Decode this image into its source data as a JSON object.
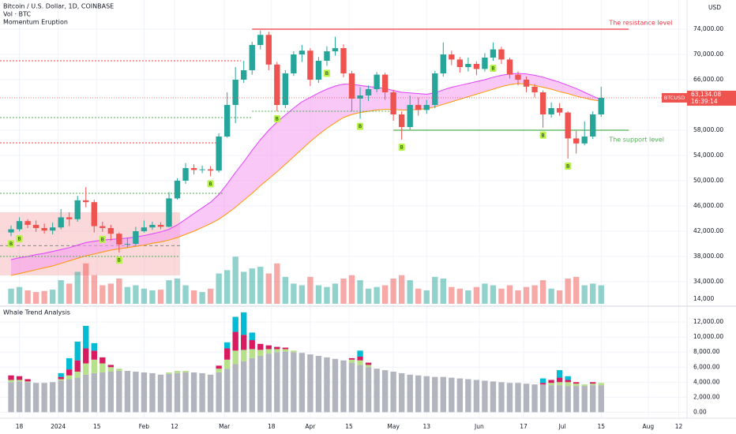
{
  "chart_data": {
    "type": "candlestick",
    "title": "Bitcoin / U.S. Dollar, 1D, COINBASE",
    "volume_label": "Vol · BTC",
    "indicator_label": "Momentum Eruption",
    "currency": "USD",
    "symbol": "BTCUSD",
    "last_price_label": "63,134.08",
    "countdown": "16:39:14",
    "up_color": "#26a69a",
    "down_color": "#ef5350",
    "x": [
      -17,
      -14,
      -11,
      -8,
      -5,
      -2,
      1,
      4,
      7,
      10,
      13,
      16,
      19,
      22,
      25,
      28,
      31,
      34,
      37,
      40,
      43,
      46,
      49,
      52,
      55,
      58,
      61,
      64,
      67,
      70,
      73,
      76,
      79,
      82,
      85,
      88,
      91,
      94,
      97,
      100,
      103,
      106,
      109,
      112,
      115,
      118,
      121,
      124,
      127,
      130,
      133,
      136,
      139,
      142,
      145,
      148,
      151,
      154,
      157,
      160,
      163,
      166,
      169,
      172,
      175,
      178,
      181,
      184,
      187,
      190,
      193,
      196
    ],
    "ohlc": [
      [
        41800,
        42900,
        41200,
        42300
      ],
      [
        42300,
        44200,
        42000,
        43600
      ],
      [
        43600,
        43900,
        42500,
        43000
      ],
      [
        43000,
        43700,
        41900,
        42500
      ],
      [
        42500,
        43200,
        41600,
        42100
      ],
      [
        42100,
        43400,
        41500,
        42600
      ],
      [
        42600,
        45500,
        42300,
        44200
      ],
      [
        44200,
        45000,
        42800,
        43900
      ],
      [
        43900,
        47600,
        43500,
        46900
      ],
      [
        46900,
        49000,
        45800,
        46600
      ],
      [
        46600,
        47000,
        41800,
        42800
      ],
      [
        42800,
        43500,
        41900,
        42500
      ],
      [
        42500,
        43000,
        40500,
        41600
      ],
      [
        41600,
        41800,
        38600,
        39900
      ],
      [
        39900,
        41000,
        39400,
        40000
      ],
      [
        40000,
        42700,
        39700,
        42000
      ],
      [
        42000,
        43700,
        41800,
        42600
      ],
      [
        42600,
        43500,
        42200,
        43000
      ],
      [
        43000,
        43400,
        42300,
        42700
      ],
      [
        42700,
        48200,
        42600,
        47200
      ],
      [
        47200,
        50400,
        47000,
        50000
      ],
      [
        50000,
        52800,
        49500,
        52000
      ],
      [
        52000,
        52600,
        51000,
        51700
      ],
      [
        51700,
        52400,
        51200,
        51800
      ],
      [
        51800,
        52300,
        50700,
        51600
      ],
      [
        51600,
        57500,
        51300,
        57000
      ],
      [
        57000,
        64000,
        56800,
        62000
      ],
      [
        62000,
        68000,
        59100,
        66000
      ],
      [
        66000,
        69000,
        65500,
        67500
      ],
      [
        67500,
        72000,
        66800,
        71500
      ],
      [
        71500,
        73800,
        70800,
        73100
      ],
      [
        73100,
        73600,
        67500,
        68400
      ],
      [
        68400,
        68800,
        61000,
        62000
      ],
      [
        62000,
        67500,
        61500,
        67000
      ],
      [
        67000,
        70500,
        66600,
        70000
      ],
      [
        70000,
        71500,
        68800,
        70600
      ],
      [
        70600,
        71000,
        65000,
        66000
      ],
      [
        66000,
        69600,
        65500,
        69000
      ],
      [
        69000,
        71300,
        68200,
        70500
      ],
      [
        70500,
        72800,
        69800,
        71000
      ],
      [
        71000,
        71600,
        66400,
        67000
      ],
      [
        67000,
        67400,
        61000,
        63000
      ],
      [
        63000,
        64800,
        59800,
        63500
      ],
      [
        63500,
        65100,
        62600,
        64500
      ],
      [
        64500,
        67200,
        64000,
        66800
      ],
      [
        66800,
        67100,
        62800,
        64000
      ],
      [
        64000,
        64400,
        59500,
        60500
      ],
      [
        60500,
        61000,
        56500,
        58500
      ],
      [
        58500,
        63500,
        58100,
        62000
      ],
      [
        62000,
        63200,
        60300,
        61200
      ],
      [
        61200,
        62800,
        60600,
        62000
      ],
      [
        62000,
        67400,
        61500,
        67000
      ],
      [
        67000,
        71900,
        66500,
        70000
      ],
      [
        70000,
        70600,
        68300,
        69200
      ],
      [
        69200,
        69600,
        67100,
        68000
      ],
      [
        68000,
        69500,
        67300,
        68500
      ],
      [
        68500,
        68900,
        66700,
        67700
      ],
      [
        67700,
        70200,
        67300,
        69500
      ],
      [
        69500,
        71900,
        69000,
        70800
      ],
      [
        70800,
        71200,
        68500,
        69200
      ],
      [
        69200,
        69500,
        66200,
        66800
      ],
      [
        66800,
        67300,
        65100,
        66000
      ],
      [
        66000,
        66500,
        64000,
        64900
      ],
      [
        64900,
        65300,
        63200,
        64000
      ],
      [
        64000,
        64300,
        58400,
        60500
      ],
      [
        60500,
        62400,
        60000,
        61500
      ],
      [
        61500,
        62300,
        60300,
        60800
      ],
      [
        60800,
        61000,
        53500,
        56700
      ],
      [
        56700,
        57900,
        54300,
        55900
      ],
      [
        55900,
        59400,
        55600,
        57000
      ],
      [
        57000,
        61000,
        56600,
        60500
      ],
      [
        60500,
        64900,
        60100,
        63134.08
      ]
    ],
    "xlim": [
      -21,
      227
    ],
    "xticks": [
      {
        "value": -14,
        "label": "18"
      },
      {
        "value": 0,
        "label": "2024"
      },
      {
        "value": 14,
        "label": "15"
      },
      {
        "value": 31,
        "label": "Feb"
      },
      {
        "value": 42,
        "label": "12"
      },
      {
        "value": 60,
        "label": "Mar"
      },
      {
        "value": 77,
        "label": "18"
      },
      {
        "value": 91,
        "label": "Apr"
      },
      {
        "value": 105,
        "label": "15"
      },
      {
        "value": 121,
        "label": "May"
      },
      {
        "value": 133,
        "label": "13"
      },
      {
        "value": 152,
        "label": "Jun"
      },
      {
        "value": 168,
        "label": "17"
      },
      {
        "value": 182,
        "label": "Jul"
      },
      {
        "value": 196,
        "label": "15"
      },
      {
        "value": 213,
        "label": "Aug"
      },
      {
        "value": 224,
        "label": "12"
      }
    ],
    "ylim": [
      30500,
      78625
    ],
    "yticks": [
      {
        "value": 34000,
        "label": "34,000.00"
      },
      {
        "value": 38000,
        "label": "38,000.00"
      },
      {
        "value": 42000,
        "label": "42,000.00"
      },
      {
        "value": 46000,
        "label": "46,000.00"
      },
      {
        "value": 50000,
        "label": "50,000.00"
      },
      {
        "value": 54000,
        "label": "54,000.00"
      },
      {
        "value": 58000,
        "label": "58,000.00"
      },
      {
        "value": 66000,
        "label": "66,000.00"
      },
      {
        "value": 70000,
        "label": "70,000.00"
      },
      {
        "value": 74000,
        "label": "74,000.00"
      }
    ],
    "volume": {
      "values": [
        45000,
        50000,
        40000,
        35000,
        38000,
        42000,
        70000,
        60000,
        95000,
        120000,
        85000,
        55000,
        60000,
        75000,
        50000,
        55000,
        45000,
        40000,
        42000,
        70000,
        75000,
        55000,
        40000,
        35000,
        45000,
        90000,
        100000,
        140000,
        95000,
        105000,
        110000,
        90000,
        120000,
        80000,
        60000,
        55000,
        80000,
        55000,
        50000,
        60000,
        75000,
        85000,
        70000,
        45000,
        50000,
        55000,
        75000,
        85000,
        70000,
        45000,
        40000,
        80000,
        75000,
        50000,
        45000,
        40000,
        50000,
        60000,
        55000,
        45000,
        55000,
        40000,
        50000,
        55000,
        70000,
        45000,
        40000,
        75000,
        80000,
        55000,
        60000,
        55000
      ],
      "ylim": [
        0,
        150000
      ],
      "yticks": [
        {
          "value": 14000,
          "label": "14,000"
        }
      ]
    },
    "ribbon": {
      "upper": [
        37500,
        37800,
        38000,
        38300,
        38500,
        38800,
        39100,
        39400,
        39800,
        40200,
        40400,
        40600,
        40700,
        40800,
        40900,
        41100,
        41300,
        41600,
        41900,
        42300,
        43000,
        43900,
        44800,
        45700,
        46600,
        47800,
        49500,
        51300,
        53000,
        54800,
        56500,
        58000,
        59300,
        60400,
        61500,
        62500,
        63200,
        63900,
        64500,
        65000,
        65300,
        65300,
        65100,
        64900,
        64800,
        64600,
        64300,
        64000,
        63900,
        63800,
        63700,
        63900,
        64400,
        64800,
        65100,
        65400,
        65700,
        66000,
        66400,
        66700,
        66900,
        67000,
        66900,
        66700,
        66400,
        66000,
        65600,
        65100,
        64600,
        64000,
        63400,
        62800
      ],
      "lower": [
        35000,
        35300,
        35600,
        35900,
        36200,
        36500,
        36900,
        37300,
        37700,
        38100,
        38400,
        38700,
        39000,
        39200,
        39400,
        39600,
        39800,
        40100,
        40300,
        40600,
        41000,
        41500,
        42000,
        42600,
        43200,
        43900,
        44800,
        45800,
        46900,
        48000,
        49200,
        50300,
        51400,
        52600,
        53800,
        55000,
        56200,
        57300,
        58300,
        59200,
        60000,
        60500,
        60800,
        61000,
        61200,
        61300,
        61300,
        61200,
        61200,
        61300,
        61400,
        61700,
        62100,
        62500,
        62900,
        63300,
        63700,
        64100,
        64500,
        64900,
        65200,
        65400,
        65300,
        65100,
        64800,
        64500,
        64100,
        63800,
        63400,
        63100,
        62800,
        62600
      ],
      "upper_color": "#e040fb",
      "lower_color": "#ff9800",
      "fill": "#f49af0"
    },
    "levels": [
      {
        "value": 74000,
        "from": 70,
        "to": 206,
        "color": "#f23645",
        "style": "solid",
        "label": "The resistance level"
      },
      {
        "value": 58000,
        "from": 121,
        "to": 206,
        "color": "#4caf50",
        "style": "solid",
        "label": "The support level"
      },
      {
        "value": 69000,
        "to": 66,
        "color": "#f23645",
        "style": "dotted"
      },
      {
        "value": 61000,
        "from": 70,
        "to": 122,
        "color": "#4caf50",
        "style": "dotted"
      },
      {
        "value": 60000,
        "to": 70,
        "color": "#4caf50",
        "style": "dotted"
      },
      {
        "value": 56000,
        "to": 57,
        "color": "#f23645",
        "style": "dotted"
      },
      {
        "value": 48000,
        "to": 60,
        "color": "#4caf50",
        "style": "dotted"
      },
      {
        "value": 38000,
        "to": 44,
        "color": "#4caf50",
        "style": "dotted"
      }
    ],
    "box": {
      "x": [
        -21,
        44
      ],
      "y": [
        35000,
        45000
      ],
      "mid": 39700,
      "color": "#f7a8ae"
    },
    "buy_signals": {
      "label": "B",
      "x": [
        -17,
        -14,
        16,
        22,
        55,
        79,
        97,
        109,
        124,
        157,
        175,
        184
      ],
      "color": "#b5f542"
    },
    "whale": {
      "title": "Whale Trend Analysis",
      "ylim": [
        -800,
        13700
      ],
      "yticks": [
        {
          "value": 0,
          "label": "0.00"
        },
        {
          "value": 2000,
          "label": "2,000.00"
        },
        {
          "value": 4000,
          "label": "4,000.00"
        },
        {
          "value": 6000,
          "label": "6,000.00"
        },
        {
          "value": 8000,
          "label": "8,000.00"
        },
        {
          "value": 10000,
          "label": "10,000.00"
        },
        {
          "value": 12000,
          "label": "12,000.00"
        }
      ],
      "series": [
        {
          "color": "#b2b5be",
          "values": [
            4000,
            4100,
            4000,
            3900,
            3900,
            4000,
            4200,
            4400,
            4600,
            5000,
            5200,
            5300,
            5400,
            5500,
            5500,
            5400,
            5300,
            5200,
            5000,
            5100,
            5200,
            5300,
            5300,
            5200,
            5000,
            5300,
            5800,
            6400,
            6800,
            7200,
            7500,
            7800,
            8000,
            8100,
            8000,
            7900,
            7700,
            7500,
            7300,
            7100,
            6900,
            6600,
            6300,
            6000,
            5800,
            5600,
            5400,
            5200,
            5000,
            4900,
            4800,
            4700,
            4700,
            4600,
            4500,
            4400,
            4300,
            4200,
            4100,
            4000,
            3900,
            3900,
            3800,
            3700,
            3700,
            3600,
            3600,
            3500,
            3500,
            3500,
            3600,
            3600
          ]
        },
        {
          "color": "#b7e08a",
          "values": [
            300,
            200,
            100,
            0,
            0,
            0,
            200,
            500,
            800,
            1500,
            1800,
            1200,
            600,
            300,
            0,
            0,
            0,
            0,
            0,
            200,
            300,
            200,
            0,
            0,
            0,
            500,
            1200,
            1800,
            1500,
            1200,
            800,
            600,
            400,
            300,
            200,
            0,
            0,
            0,
            0,
            0,
            0,
            400,
            600,
            300,
            0,
            0,
            0,
            0,
            0,
            0,
            0,
            0,
            0,
            0,
            0,
            0,
            0,
            0,
            0,
            0,
            0,
            0,
            0,
            0,
            0,
            300,
            400,
            500,
            300,
            200,
            200,
            300
          ]
        },
        {
          "color": "#d81b60",
          "values": [
            600,
            500,
            300,
            0,
            0,
            0,
            300,
            800,
            1500,
            2000,
            1200,
            800,
            300,
            0,
            0,
            0,
            0,
            0,
            0,
            0,
            0,
            0,
            0,
            0,
            0,
            400,
            1500,
            2500,
            2000,
            1200,
            800,
            500,
            300,
            200,
            0,
            0,
            0,
            0,
            0,
            0,
            0,
            200,
            500,
            300,
            0,
            0,
            0,
            0,
            0,
            0,
            0,
            0,
            0,
            0,
            0,
            0,
            0,
            0,
            0,
            0,
            0,
            0,
            0,
            0,
            200,
            400,
            600,
            300,
            200,
            0,
            200,
            0
          ]
        },
        {
          "color": "#00bcd4",
          "values": [
            0,
            0,
            0,
            0,
            0,
            0,
            500,
            1500,
            2500,
            3000,
            1000,
            0,
            0,
            0,
            0,
            0,
            0,
            0,
            0,
            0,
            0,
            0,
            0,
            0,
            0,
            0,
            800,
            2000,
            3000,
            1000,
            0,
            0,
            0,
            0,
            0,
            0,
            0,
            0,
            0,
            0,
            0,
            0,
            800,
            0,
            0,
            0,
            0,
            0,
            0,
            0,
            0,
            0,
            0,
            0,
            0,
            0,
            0,
            0,
            0,
            0,
            0,
            0,
            0,
            0,
            600,
            0,
            1000,
            500,
            0,
            0,
            0,
            0
          ]
        }
      ]
    }
  }
}
